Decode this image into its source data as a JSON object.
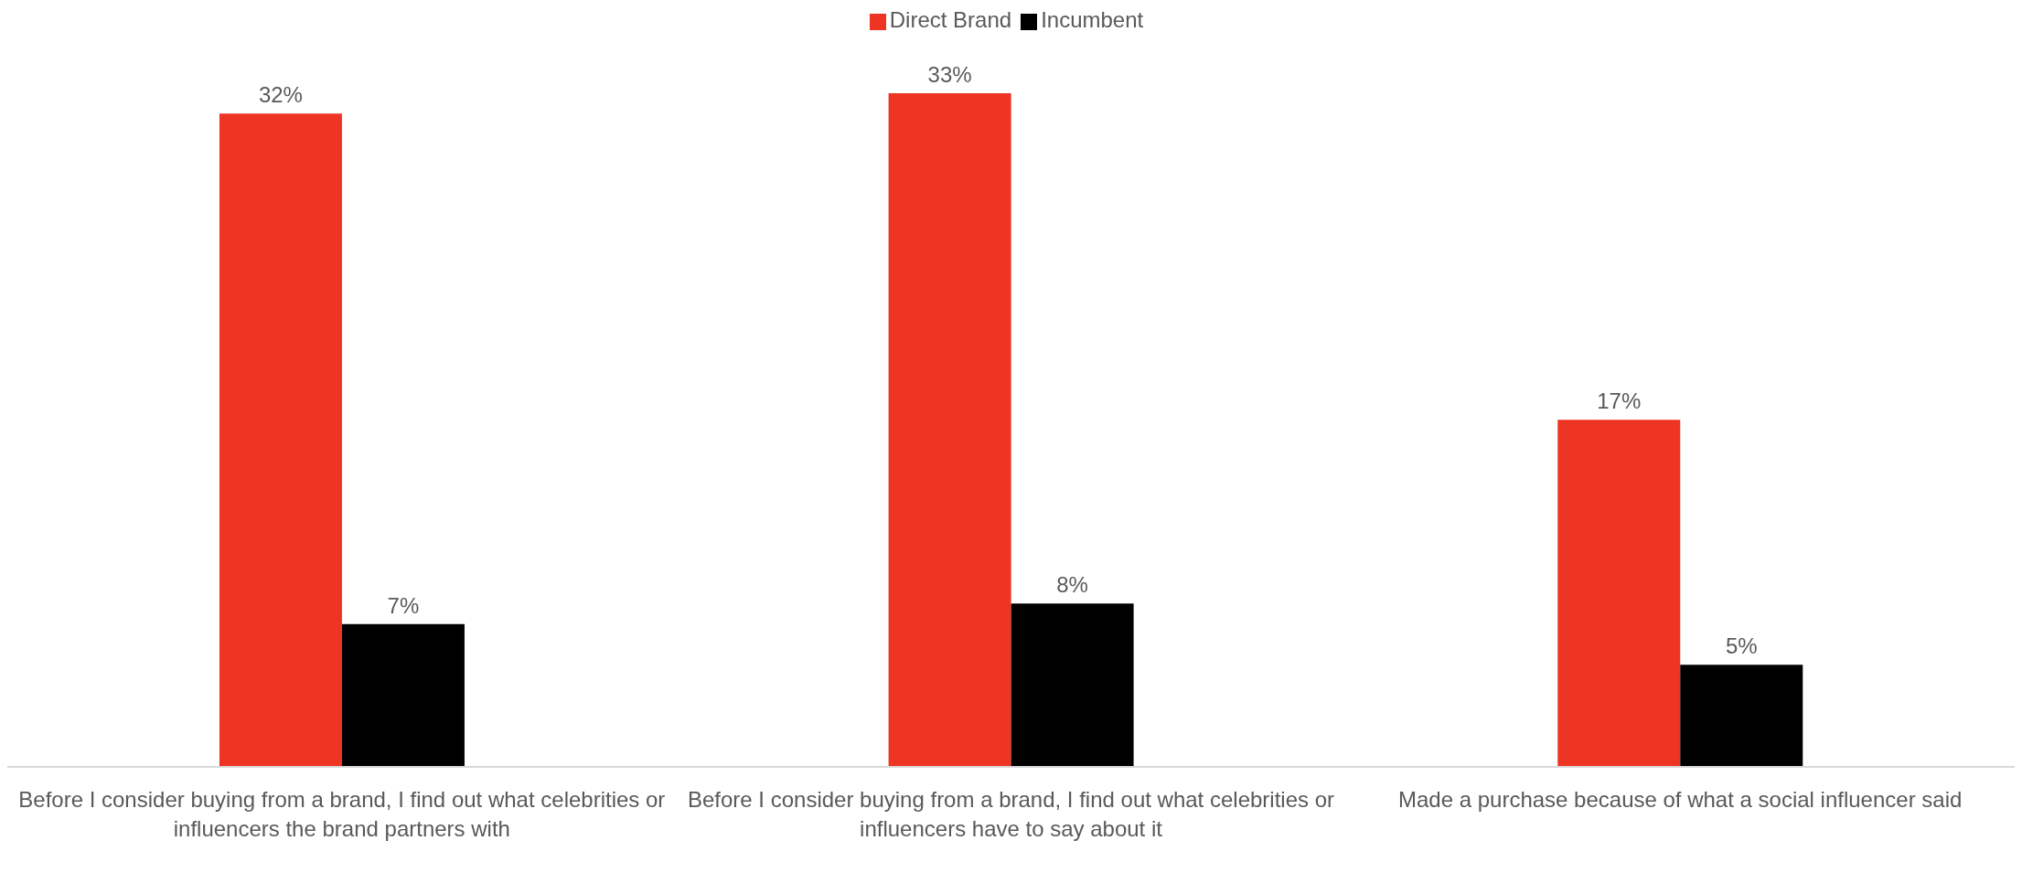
{
  "chart_data": {
    "type": "bar",
    "categories": [
      "Before I consider buying from a brand, I find out what celebrities or influencers the brand partners with",
      "Before I consider buying from a brand, I find out what celebrities or influencers have to say about it",
      "Made a purchase because of what a social influencer said"
    ],
    "series": [
      {
        "name": "Direct Brand",
        "color": "#ee3524",
        "values": [
          32,
          33,
          17
        ],
        "value_labels": [
          "32%",
          "33%",
          "17%"
        ]
      },
      {
        "name": "Incumbent",
        "color": "#000000",
        "values": [
          7,
          8,
          5
        ],
        "value_labels": [
          "7%",
          "8%",
          "5%"
        ]
      }
    ],
    "legend": "top",
    "grid": false
  }
}
